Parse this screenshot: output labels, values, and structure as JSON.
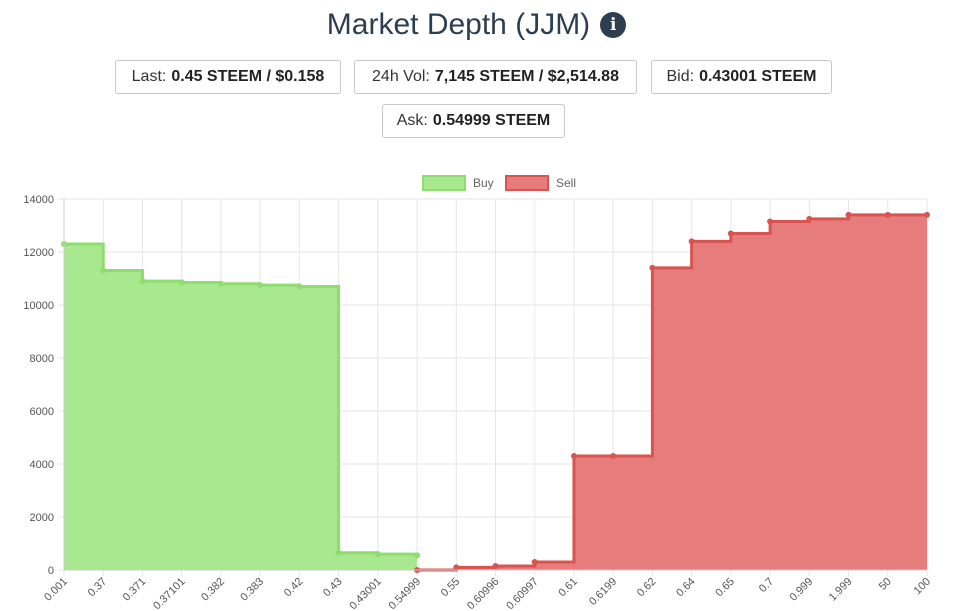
{
  "header": {
    "title": "Market Depth (JJM)",
    "info_icon": "info-circle-icon"
  },
  "stats": {
    "last": {
      "label": "Last:",
      "value": "0.45 STEEM / $0.158"
    },
    "vol": {
      "label": "24h Vol:",
      "value": "7,145 STEEM / $2,514.88"
    },
    "bid": {
      "label": "Bid:",
      "value": "0.43001 STEEM"
    },
    "ask": {
      "label": "Ask:",
      "value": "0.54999 STEEM"
    }
  },
  "chart_data": {
    "type": "area",
    "stepped": true,
    "title": "",
    "xlabel": "",
    "ylabel": "",
    "ylim": [
      0,
      14000
    ],
    "y_ticks": [
      0,
      2000,
      4000,
      6000,
      8000,
      10000,
      12000,
      14000
    ],
    "grid": true,
    "legend_position": "top",
    "categories": [
      "0.001",
      "0.37",
      "0.371",
      "0.37101",
      "0.382",
      "0.383",
      "0.42",
      "0.43",
      "0.43001",
      "0.54999",
      "0.55",
      "0.60996",
      "0.60997",
      "0.61",
      "0.6199",
      "0.62",
      "0.64",
      "0.65",
      "0.7",
      "0.999",
      "1.999",
      "50",
      "100"
    ],
    "series": [
      {
        "name": "Buy",
        "color": "#a8e88f",
        "border_color": "#8fdc6f",
        "values": [
          12300,
          11300,
          10900,
          10850,
          10800,
          10750,
          10700,
          650,
          600,
          550,
          null,
          null,
          null,
          null,
          null,
          null,
          null,
          null,
          null,
          null,
          null,
          null,
          null
        ]
      },
      {
        "name": "Sell",
        "color": "#e67c7c",
        "border_color": "#d9534f",
        "values": [
          null,
          null,
          null,
          null,
          null,
          null,
          null,
          null,
          null,
          0,
          100,
          150,
          300,
          4300,
          4300,
          11400,
          12400,
          12700,
          13150,
          13250,
          13400,
          13400,
          13400
        ]
      }
    ]
  }
}
